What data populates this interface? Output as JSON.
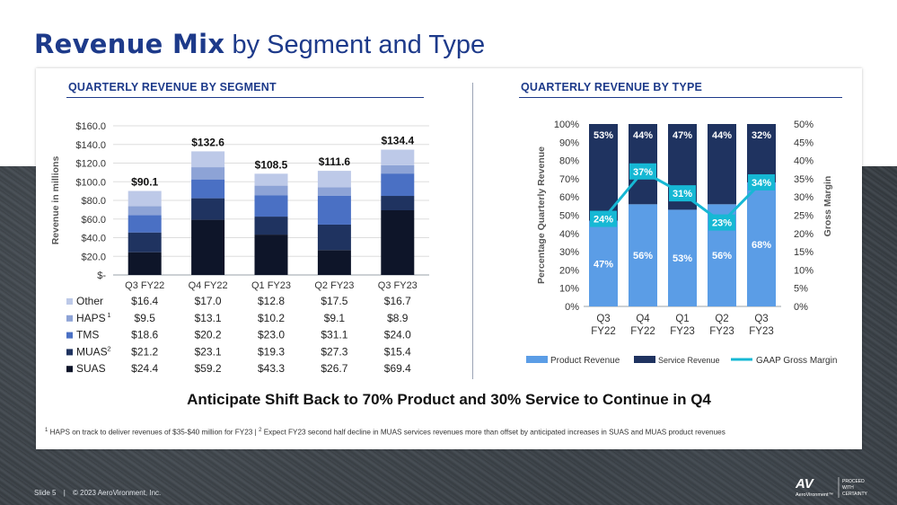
{
  "title": {
    "bold": "Revenue Mix",
    "rest": "by Segment and Type"
  },
  "left_chart": {
    "heading": "QUARTERLY REVENUE BY SEGMENT"
  },
  "right_chart": {
    "heading": "QUARTERLY REVENUE BY TYPE"
  },
  "tagline": "Anticipate Shift Back to 70% Product and 30% Service to Continue in Q4",
  "footnote": {
    "part1": "HAPS on track to deliver revenues of $35-$40 million for FY23",
    "separator": "|",
    "part2": "Expect FY23 second half decline in MUAS services revenues more than offset by anticipated increases in SUAS and MUAS product revenues",
    "mark1": "1",
    "mark2": "2"
  },
  "footer": {
    "slide": "Slide 5",
    "separator": "|",
    "copyright": "© 2023 AeroVironment, Inc."
  },
  "logo": {
    "mark": "AV",
    "brand": "AeroVironment™",
    "tagline": [
      "PROCEED",
      "WITH",
      "CERTAINTY"
    ]
  },
  "colors": {
    "title": "#1d3a8a",
    "other": "#bdc9e8",
    "haps": "#8da3d6",
    "tms": "#4a70c4",
    "muas": "#1f3360",
    "suas": "#0e1529",
    "product": "#5b9de6",
    "service": "#1f3360",
    "margin": "#16b8d4"
  },
  "chart_data": [
    {
      "type": "bar",
      "stacked": true,
      "title": "QUARTERLY REVENUE BY SEGMENT",
      "categories": [
        "Q3 FY22",
        "Q4 FY22",
        "Q1 FY23",
        "Q2 FY23",
        "Q3 FY23"
      ],
      "totals": [
        "$90.1",
        "$132.6",
        "$108.5",
        "$111.6",
        "$134.4"
      ],
      "ylabel": "Revenue in millions",
      "ylim": [
        0,
        160
      ],
      "yticks": [
        "$-",
        "$20.0",
        "$40.0",
        "$60.0",
        "$80.0",
        "$100.0",
        "$120.0",
        "$140.0",
        "$160.0"
      ],
      "series": [
        {
          "name": "Other",
          "mark": "",
          "values": [
            16.4,
            17.0,
            12.8,
            17.5,
            16.7
          ],
          "labels": [
            "$16.4",
            "$17.0",
            "$12.8",
            "$17.5",
            "$16.7"
          ]
        },
        {
          "name": "HAPS",
          "mark": "1",
          "values": [
            9.5,
            13.1,
            10.2,
            9.1,
            8.9
          ],
          "labels": [
            "$9.5",
            "$13.1",
            "$10.2",
            "$9.1",
            "$8.9"
          ]
        },
        {
          "name": "TMS",
          "mark": "",
          "values": [
            18.6,
            20.2,
            23.0,
            31.1,
            24.0
          ],
          "labels": [
            "$18.6",
            "$20.2",
            "$23.0",
            "$31.1",
            "$24.0"
          ]
        },
        {
          "name": "MUAS",
          "mark": "2",
          "values": [
            21.2,
            23.1,
            19.3,
            27.3,
            15.4
          ],
          "labels": [
            "$21.2",
            "$23.1",
            "$19.3",
            "$27.3",
            "$15.4"
          ]
        },
        {
          "name": "SUAS",
          "mark": "",
          "values": [
            24.4,
            59.2,
            43.3,
            26.7,
            69.4
          ],
          "labels": [
            "$24.4",
            "$59.2",
            "$43.3",
            "$26.7",
            "$69.4"
          ]
        }
      ]
    },
    {
      "type": "bar",
      "stacked": true,
      "title": "QUARTERLY REVENUE BY TYPE",
      "categories": [
        [
          "Q3",
          "FY22"
        ],
        [
          "Q4",
          "FY22"
        ],
        [
          "Q1",
          "FY23"
        ],
        [
          "Q2",
          "FY23"
        ],
        [
          "Q3",
          "FY23"
        ]
      ],
      "ylabel": "Percentage Quarterly Revenue",
      "y2label": "Gross Margin",
      "ylim": [
        0,
        100
      ],
      "y2lim": [
        0,
        50
      ],
      "yticks": [
        "0%",
        "10%",
        "20%",
        "30%",
        "40%",
        "50%",
        "60%",
        "70%",
        "80%",
        "90%",
        "100%"
      ],
      "y2ticks": [
        "0%",
        "5%",
        "10%",
        "15%",
        "20%",
        "25%",
        "30%",
        "35%",
        "40%",
        "45%",
        "50%"
      ],
      "series": [
        {
          "name": "Product Revenue",
          "values": [
            47,
            56,
            53,
            56,
            68
          ],
          "labels": [
            "47%",
            "56%",
            "53%",
            "56%",
            "68%"
          ]
        },
        {
          "name": "Service Revenue",
          "values": [
            53,
            44,
            47,
            44,
            32
          ],
          "labels": [
            "53%",
            "44%",
            "47%",
            "44%",
            "32%"
          ]
        }
      ],
      "line": {
        "name": "GAAP Gross Margin",
        "axis": "secondary",
        "values": [
          24,
          37,
          31,
          23,
          34
        ],
        "labels": [
          "24%",
          "37%",
          "31%",
          "23%",
          "34%"
        ]
      }
    }
  ]
}
